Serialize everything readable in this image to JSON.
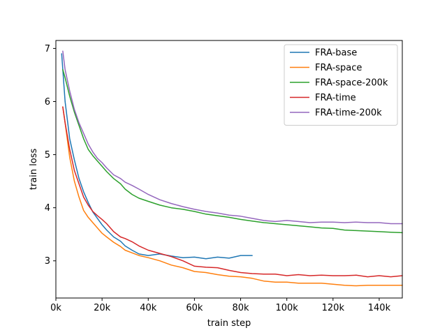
{
  "chart_data": {
    "type": "line",
    "title": "",
    "xlabel": "train step",
    "ylabel": "train loss",
    "xlim": [
      0,
      150000
    ],
    "ylim": [
      2.3,
      7.15
    ],
    "grid": false,
    "legend_position": "top-right",
    "x_ticks": [
      {
        "value": 0,
        "label": "0k"
      },
      {
        "value": 20000,
        "label": "20k"
      },
      {
        "value": 40000,
        "label": "40k"
      },
      {
        "value": 60000,
        "label": "60k"
      },
      {
        "value": 80000,
        "label": "80k"
      },
      {
        "value": 100000,
        "label": "100k"
      },
      {
        "value": 120000,
        "label": "120k"
      },
      {
        "value": 140000,
        "label": "140k"
      }
    ],
    "y_ticks": [
      {
        "value": 3,
        "label": "3"
      },
      {
        "value": 4,
        "label": "4"
      },
      {
        "value": 5,
        "label": "5"
      },
      {
        "value": 6,
        "label": "6"
      },
      {
        "value": 7,
        "label": "7"
      }
    ],
    "series": [
      {
        "name": "FRA-base",
        "color": "#1f77b4",
        "x": [
          2500,
          4000,
          6000,
          8000,
          10000,
          12000,
          14000,
          16000,
          18000,
          20000,
          22000,
          25000,
          28000,
          30000,
          33000,
          36000,
          40000,
          45000,
          50000,
          55000,
          60000,
          65000,
          70000,
          75000,
          80000,
          85000
        ],
        "y": [
          6.9,
          6.0,
          5.3,
          4.9,
          4.55,
          4.3,
          4.1,
          3.92,
          3.8,
          3.68,
          3.58,
          3.45,
          3.37,
          3.28,
          3.2,
          3.13,
          3.1,
          3.13,
          3.09,
          3.06,
          3.07,
          3.04,
          3.07,
          3.05,
          3.1,
          3.1
        ]
      },
      {
        "name": "FRA-space",
        "color": "#ff7f0e",
        "x": [
          3000,
          4000,
          6000,
          8000,
          10000,
          12000,
          14000,
          16000,
          18000,
          20000,
          22000,
          25000,
          28000,
          30000,
          33000,
          36000,
          40000,
          45000,
          50000,
          55000,
          60000,
          65000,
          70000,
          75000,
          80000,
          85000,
          90000,
          95000,
          100000,
          105000,
          110000,
          115000,
          120000,
          125000,
          130000,
          135000,
          140000,
          145000,
          150000
        ],
        "y": [
          5.9,
          5.6,
          4.95,
          4.5,
          4.2,
          3.95,
          3.82,
          3.72,
          3.62,
          3.52,
          3.45,
          3.35,
          3.27,
          3.2,
          3.15,
          3.1,
          3.06,
          3.0,
          2.92,
          2.87,
          2.8,
          2.78,
          2.74,
          2.71,
          2.7,
          2.67,
          2.62,
          2.6,
          2.6,
          2.58,
          2.58,
          2.58,
          2.56,
          2.54,
          2.53,
          2.54,
          2.54,
          2.54,
          2.54
        ]
      },
      {
        "name": "FRA-space-200k",
        "color": "#2ca02c",
        "x": [
          3000,
          4000,
          6000,
          8000,
          10000,
          12000,
          14000,
          16000,
          18000,
          20000,
          22000,
          25000,
          28000,
          30000,
          33000,
          36000,
          40000,
          45000,
          50000,
          55000,
          60000,
          65000,
          70000,
          75000,
          80000,
          85000,
          90000,
          95000,
          100000,
          105000,
          110000,
          115000,
          120000,
          125000,
          130000,
          135000,
          140000,
          145000,
          150000
        ],
        "y": [
          6.6,
          6.45,
          6.1,
          5.8,
          5.55,
          5.3,
          5.1,
          4.98,
          4.88,
          4.78,
          4.68,
          4.55,
          4.45,
          4.35,
          4.25,
          4.18,
          4.12,
          4.05,
          4.0,
          3.97,
          3.93,
          3.88,
          3.85,
          3.82,
          3.78,
          3.75,
          3.72,
          3.7,
          3.68,
          3.66,
          3.64,
          3.62,
          3.61,
          3.58,
          3.57,
          3.56,
          3.55,
          3.54,
          3.53
        ]
      },
      {
        "name": "FRA-time",
        "color": "#d62728",
        "x": [
          3000,
          4000,
          6000,
          8000,
          10000,
          12000,
          14000,
          16000,
          18000,
          20000,
          22000,
          25000,
          28000,
          30000,
          33000,
          36000,
          40000,
          45000,
          50000,
          55000,
          60000,
          65000,
          70000,
          75000,
          80000,
          85000,
          90000,
          95000,
          100000,
          105000,
          110000,
          115000,
          120000,
          125000,
          130000,
          135000,
          140000,
          145000,
          150000
        ],
        "y": [
          5.9,
          5.6,
          5.1,
          4.7,
          4.45,
          4.2,
          4.05,
          3.93,
          3.85,
          3.78,
          3.7,
          3.55,
          3.45,
          3.42,
          3.36,
          3.28,
          3.2,
          3.14,
          3.08,
          3.0,
          2.9,
          2.88,
          2.87,
          2.82,
          2.78,
          2.76,
          2.75,
          2.75,
          2.72,
          2.74,
          2.72,
          2.73,
          2.72,
          2.72,
          2.73,
          2.7,
          2.72,
          2.7,
          2.72
        ]
      },
      {
        "name": "FRA-time-200k",
        "color": "#9467bd",
        "x": [
          3000,
          4000,
          6000,
          8000,
          10000,
          12000,
          14000,
          16000,
          18000,
          20000,
          22000,
          25000,
          28000,
          30000,
          33000,
          36000,
          40000,
          45000,
          50000,
          55000,
          60000,
          65000,
          70000,
          75000,
          80000,
          85000,
          90000,
          95000,
          100000,
          105000,
          110000,
          115000,
          120000,
          125000,
          130000,
          135000,
          140000,
          145000,
          150000
        ],
        "y": [
          6.95,
          6.6,
          6.2,
          5.85,
          5.6,
          5.4,
          5.2,
          5.05,
          4.93,
          4.85,
          4.75,
          4.62,
          4.55,
          4.48,
          4.42,
          4.35,
          4.25,
          4.15,
          4.08,
          4.02,
          3.97,
          3.93,
          3.9,
          3.86,
          3.84,
          3.8,
          3.76,
          3.74,
          3.76,
          3.74,
          3.72,
          3.73,
          3.73,
          3.72,
          3.73,
          3.72,
          3.72,
          3.7,
          3.7
        ]
      }
    ]
  }
}
